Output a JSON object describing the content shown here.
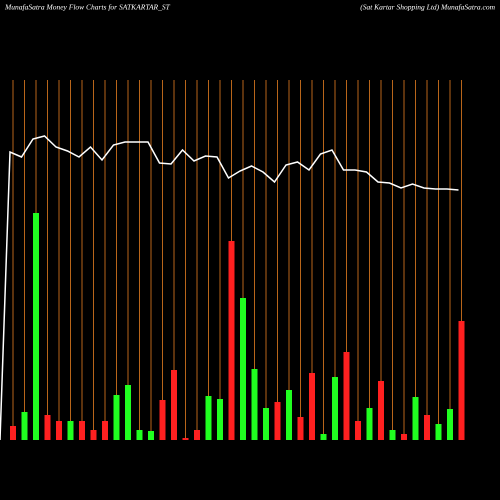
{
  "chart_data": {
    "type": "bar-line",
    "title": "MunafaSatra  Money Flow  Charts for SATKARTAR_ST",
    "subtitle": "(Sat Kartar Shopping Ltd) MunafaSatra.com",
    "ylim": [
      0,
      440
    ],
    "series": [
      {
        "name": "money flow",
        "type": "bar",
        "values": [
          14,
          28,
          227,
          25,
          19,
          19,
          19,
          10,
          19,
          45,
          55,
          10,
          9,
          40,
          70,
          2,
          10,
          44,
          41,
          199,
          142,
          71,
          32,
          38,
          50,
          23,
          67,
          6,
          63,
          88,
          19,
          32,
          59,
          10,
          6,
          43,
          25,
          16,
          31,
          119
        ],
        "colors": [
          "#ff2020",
          "#20ff20",
          "#20ff20",
          "#ff2020",
          "#ff2020",
          "#20ff20",
          "#ff2020",
          "#ff2020",
          "#ff2020",
          "#20ff20",
          "#20ff20",
          "#20ff20",
          "#20ff20",
          "#ff2020",
          "#ff2020",
          "#ff2020",
          "#ff2020",
          "#20ff20",
          "#20ff20",
          "#ff2020",
          "#20ff20",
          "#20ff20",
          "#20ff20",
          "#ff2020",
          "#20ff20",
          "#ff2020",
          "#ff2020",
          "#20ff20",
          "#20ff20",
          "#ff2020",
          "#ff2020",
          "#20ff20",
          "#ff2020",
          "#20ff20",
          "#ff2020",
          "#20ff20",
          "#ff2020",
          "#20ff20",
          "#20ff20",
          "#ff2020"
        ]
      },
      {
        "name": "price",
        "type": "line",
        "color": "#ffffff",
        "values": [
          288,
          283,
          301,
          304,
          293,
          289,
          283,
          293,
          280,
          295,
          298,
          298,
          298,
          277,
          276,
          290,
          279,
          284,
          283,
          262,
          269,
          274,
          268,
          258,
          275,
          278,
          270,
          286,
          290,
          270,
          270,
          268,
          258,
          257,
          252,
          256,
          252,
          251,
          251,
          250
        ]
      }
    ]
  }
}
